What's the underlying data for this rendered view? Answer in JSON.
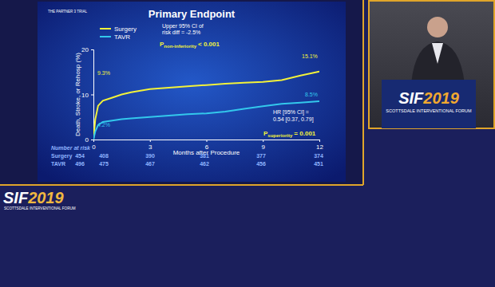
{
  "chart_data": {
    "type": "line",
    "title": "Primary Endpoint",
    "logo": "THE PARTNER 3 TRIAL",
    "x_label": "Months after Procedure",
    "y_label": "Death, Stroke, or Rehosp (%)",
    "x": [
      0,
      0.1,
      0.25,
      0.5,
      1,
      1.5,
      2,
      3,
      4,
      5,
      6,
      7,
      8,
      9,
      10,
      11,
      12
    ],
    "series": [
      {
        "name": "Surgery",
        "color": "#f2f23a",
        "line_style": "solid",
        "values": [
          0,
          4.5,
          7.5,
          8.6,
          9.3,
          10,
          10.5,
          11.2,
          11.5,
          11.8,
          12.1,
          12.4,
          12.6,
          12.8,
          13.2,
          14.2,
          15.1
        ]
      },
      {
        "name": "TAVR",
        "color": "#33c8ec",
        "line_style": "solid",
        "values": [
          0,
          1.8,
          3.2,
          3.9,
          4.2,
          4.5,
          4.7,
          5.0,
          5.3,
          5.6,
          5.8,
          6.2,
          6.8,
          7.4,
          7.9,
          8.2,
          8.5
        ]
      }
    ],
    "xlim": [
      0,
      12
    ],
    "xticks": [
      0,
      3,
      6,
      9,
      12
    ],
    "ylim": [
      0,
      20
    ],
    "yticks": [
      0,
      10,
      20
    ],
    "legend": "top-left",
    "grid": false,
    "annotations": [
      {
        "text": "Upper 95% CI of",
        "color": "#ffffff"
      },
      {
        "text": "risk diff = -2.5%",
        "color": "#ffffff"
      },
      {
        "parts": [
          "P",
          "non-inferiority",
          "< 0.001"
        ],
        "color": "#f2f23a"
      },
      {
        "text": "9.3%",
        "color": "#f2f23a"
      },
      {
        "text": "4.2%",
        "color": "#33c8ec"
      },
      {
        "text": "15.1%",
        "color": "#f2f23a"
      },
      {
        "text": "8.5%",
        "color": "#33c8ec"
      },
      {
        "text": "HR [95% CI] =",
        "color": "#ffffff"
      },
      {
        "text": "0.54 [0.37, 0.79]",
        "color": "#ffffff"
      },
      {
        "parts": [
          "P",
          "superiority",
          "= 0.001"
        ],
        "color": "#f2f23a"
      }
    ],
    "number_at_risk": {
      "title": "Number at risk",
      "rows": [
        {
          "name": "Surgery",
          "values": [
            454,
            408,
            390,
            381,
            377,
            374
          ]
        },
        {
          "name": "TAVR",
          "values": [
            496,
            475,
            467,
            462,
            456,
            451
          ]
        }
      ]
    }
  },
  "page": {
    "logo": [
      "SIF",
      "2019"
    ],
    "logo_subtext": "SCOTTSDALE INTERVENTIONAL FORUM",
    "podium": [
      "SIF",
      "2019"
    ],
    "podium_subtext": "SCOTTSDALE INTERVENTIONAL FORUM"
  }
}
